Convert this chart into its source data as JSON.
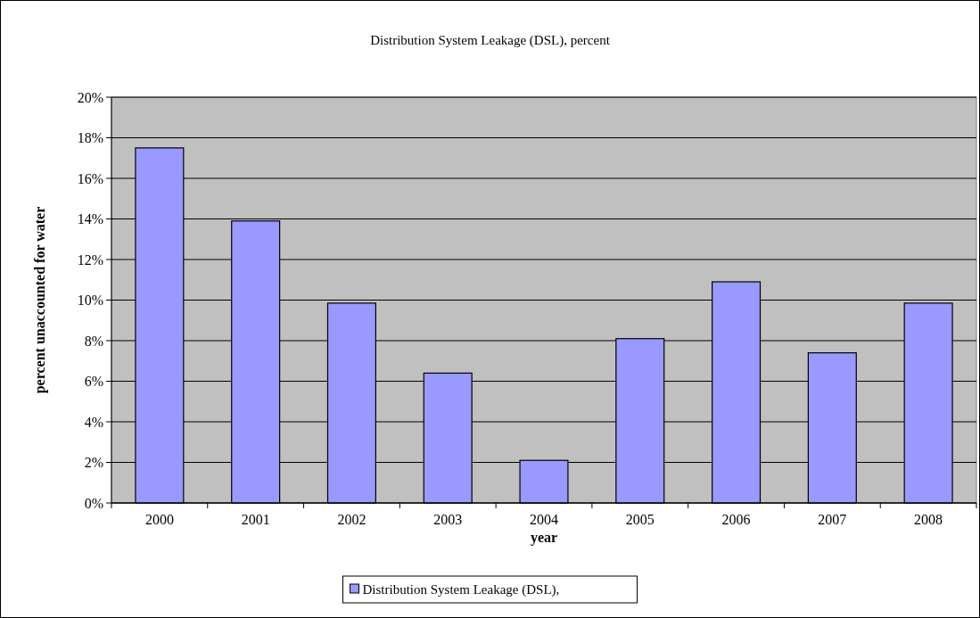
{
  "chart_data": {
    "type": "bar",
    "title": "Distribution System Leakage (DSL), percent",
    "xlabel": "year",
    "ylabel": "percent unaccounted for water",
    "categories": [
      "2000",
      "2001",
      "2002",
      "2003",
      "2004",
      "2005",
      "2006",
      "2007",
      "2008"
    ],
    "series": [
      {
        "name": "Distribution System Leakage (DSL),",
        "color": "#9999ff",
        "values": [
          17.5,
          13.9,
          9.85,
          6.4,
          2.1,
          8.1,
          10.9,
          7.4,
          9.85
        ]
      }
    ],
    "ylim": [
      0,
      20
    ],
    "yticks": [
      {
        "value": 0,
        "label": "0%"
      },
      {
        "value": 2,
        "label": "2%"
      },
      {
        "value": 4,
        "label": "4%"
      },
      {
        "value": 6,
        "label": "6%"
      },
      {
        "value": 8,
        "label": "8%"
      },
      {
        "value": 10,
        "label": "10%"
      },
      {
        "value": 12,
        "label": "12%"
      },
      {
        "value": 14,
        "label": "14%"
      },
      {
        "value": 16,
        "label": "16%"
      },
      {
        "value": 18,
        "label": "18%"
      },
      {
        "value": 20,
        "label": "20%"
      }
    ],
    "grid": "y",
    "legend": "bottom"
  }
}
